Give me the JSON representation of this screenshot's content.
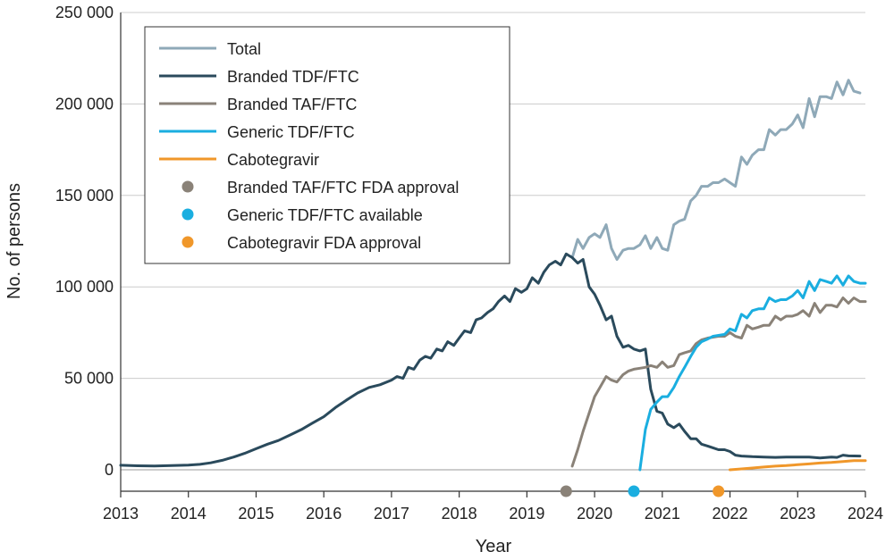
{
  "chart_data": {
    "type": "line",
    "title": "",
    "xlabel": "Year",
    "ylabel": "No. of persons",
    "xlim": [
      2013,
      2024
    ],
    "ylim": [
      0,
      250000
    ],
    "x_ticks": [
      2013,
      2014,
      2015,
      2016,
      2017,
      2018,
      2019,
      2020,
      2021,
      2022,
      2023,
      2024
    ],
    "x_tick_labels": [
      "2013",
      "2014",
      "2015",
      "2016",
      "2017",
      "2018",
      "2019",
      "2020",
      "2021",
      "2022",
      "2023",
      "2024"
    ],
    "y_ticks": [
      0,
      50000,
      100000,
      150000,
      200000,
      250000
    ],
    "y_tick_labels": [
      "0",
      "50 000",
      "100 000",
      "150 000",
      "200 000",
      "250 000"
    ],
    "grid": true,
    "legend_position": "top-left",
    "series": [
      {
        "name": "Total",
        "color": "#8fa9b8",
        "points": [
          [
            2019.67,
            116000
          ],
          [
            2019.75,
            126000
          ],
          [
            2019.83,
            121000
          ],
          [
            2019.92,
            127000
          ],
          [
            2020.0,
            129000
          ],
          [
            2020.08,
            127000
          ],
          [
            2020.17,
            134000
          ],
          [
            2020.25,
            121000
          ],
          [
            2020.33,
            115000
          ],
          [
            2020.42,
            120000
          ],
          [
            2020.5,
            121000
          ],
          [
            2020.58,
            121000
          ],
          [
            2020.67,
            123000
          ],
          [
            2020.75,
            128000
          ],
          [
            2020.83,
            121000
          ],
          [
            2020.92,
            127000
          ],
          [
            2021.0,
            121000
          ],
          [
            2021.08,
            120000
          ],
          [
            2021.17,
            134000
          ],
          [
            2021.25,
            136000
          ],
          [
            2021.33,
            137000
          ],
          [
            2021.42,
            147000
          ],
          [
            2021.5,
            150000
          ],
          [
            2021.58,
            155000
          ],
          [
            2021.67,
            155000
          ],
          [
            2021.75,
            157000
          ],
          [
            2021.83,
            157000
          ],
          [
            2021.92,
            159000
          ],
          [
            2022.0,
            157000
          ],
          [
            2022.08,
            155000
          ],
          [
            2022.17,
            171000
          ],
          [
            2022.25,
            167000
          ],
          [
            2022.33,
            172000
          ],
          [
            2022.42,
            175000
          ],
          [
            2022.5,
            175000
          ],
          [
            2022.58,
            186000
          ],
          [
            2022.67,
            183000
          ],
          [
            2022.75,
            186000
          ],
          [
            2022.83,
            186000
          ],
          [
            2022.92,
            189000
          ],
          [
            2023.0,
            194000
          ],
          [
            2023.08,
            187000
          ],
          [
            2023.17,
            203000
          ],
          [
            2023.25,
            193000
          ],
          [
            2023.33,
            204000
          ],
          [
            2023.42,
            204000
          ],
          [
            2023.5,
            203000
          ],
          [
            2023.58,
            212000
          ],
          [
            2023.67,
            205000
          ],
          [
            2023.75,
            213000
          ],
          [
            2023.83,
            207000
          ],
          [
            2023.92,
            206000
          ]
        ]
      },
      {
        "name": "Branded TDF/FTC",
        "color": "#2a4a5c",
        "points": [
          [
            2013.0,
            2500
          ],
          [
            2013.25,
            2200
          ],
          [
            2013.5,
            2100
          ],
          [
            2013.75,
            2300
          ],
          [
            2014.0,
            2600
          ],
          [
            2014.17,
            3000
          ],
          [
            2014.33,
            3800
          ],
          [
            2014.5,
            5200
          ],
          [
            2014.67,
            7000
          ],
          [
            2014.83,
            9000
          ],
          [
            2015.0,
            11500
          ],
          [
            2015.17,
            14000
          ],
          [
            2015.33,
            16000
          ],
          [
            2015.5,
            19000
          ],
          [
            2015.67,
            22000
          ],
          [
            2015.83,
            25500
          ],
          [
            2016.0,
            29000
          ],
          [
            2016.17,
            34000
          ],
          [
            2016.33,
            38000
          ],
          [
            2016.5,
            42000
          ],
          [
            2016.67,
            45000
          ],
          [
            2016.83,
            46500
          ],
          [
            2017.0,
            49000
          ],
          [
            2017.08,
            51000
          ],
          [
            2017.17,
            50000
          ],
          [
            2017.25,
            56000
          ],
          [
            2017.33,
            55000
          ],
          [
            2017.42,
            60000
          ],
          [
            2017.5,
            62000
          ],
          [
            2017.58,
            61000
          ],
          [
            2017.67,
            66000
          ],
          [
            2017.75,
            65000
          ],
          [
            2017.83,
            70000
          ],
          [
            2017.92,
            68000
          ],
          [
            2018.0,
            72000
          ],
          [
            2018.08,
            76000
          ],
          [
            2018.17,
            75000
          ],
          [
            2018.25,
            82000
          ],
          [
            2018.33,
            83000
          ],
          [
            2018.42,
            86000
          ],
          [
            2018.5,
            88000
          ],
          [
            2018.58,
            92000
          ],
          [
            2018.67,
            95000
          ],
          [
            2018.75,
            92000
          ],
          [
            2018.83,
            99000
          ],
          [
            2018.92,
            97000
          ],
          [
            2019.0,
            99000
          ],
          [
            2019.08,
            105000
          ],
          [
            2019.17,
            102000
          ],
          [
            2019.25,
            108000
          ],
          [
            2019.33,
            112000
          ],
          [
            2019.42,
            114000
          ],
          [
            2019.5,
            112000
          ],
          [
            2019.58,
            118000
          ],
          [
            2019.67,
            116000
          ],
          [
            2019.75,
            113000
          ],
          [
            2019.83,
            115000
          ],
          [
            2019.92,
            100000
          ],
          [
            2020.0,
            96000
          ],
          [
            2020.08,
            90000
          ],
          [
            2020.17,
            82000
          ],
          [
            2020.25,
            84000
          ],
          [
            2020.33,
            73000
          ],
          [
            2020.42,
            67000
          ],
          [
            2020.5,
            68000
          ],
          [
            2020.58,
            66000
          ],
          [
            2020.67,
            65000
          ],
          [
            2020.75,
            66000
          ],
          [
            2020.83,
            44000
          ],
          [
            2020.92,
            32000
          ],
          [
            2021.0,
            31000
          ],
          [
            2021.08,
            25000
          ],
          [
            2021.17,
            23000
          ],
          [
            2021.25,
            25000
          ],
          [
            2021.33,
            21000
          ],
          [
            2021.42,
            17000
          ],
          [
            2021.5,
            17000
          ],
          [
            2021.58,
            14000
          ],
          [
            2021.67,
            13000
          ],
          [
            2021.75,
            12000
          ],
          [
            2021.83,
            11000
          ],
          [
            2021.92,
            11000
          ],
          [
            2022.0,
            10000
          ],
          [
            2022.08,
            8000
          ],
          [
            2022.17,
            7500
          ],
          [
            2022.33,
            7200
          ],
          [
            2022.5,
            7000
          ],
          [
            2022.67,
            6800
          ],
          [
            2022.83,
            7000
          ],
          [
            2023.0,
            7000
          ],
          [
            2023.17,
            7000
          ],
          [
            2023.33,
            6500
          ],
          [
            2023.5,
            7000
          ],
          [
            2023.58,
            6800
          ],
          [
            2023.67,
            8000
          ],
          [
            2023.75,
            7600
          ],
          [
            2023.92,
            7500
          ]
        ]
      },
      {
        "name": "Branded TAF/FTC",
        "color": "#8a8278",
        "points": [
          [
            2019.67,
            2000
          ],
          [
            2019.75,
            11000
          ],
          [
            2019.83,
            21000
          ],
          [
            2019.92,
            31000
          ],
          [
            2020.0,
            40000
          ],
          [
            2020.08,
            45000
          ],
          [
            2020.17,
            51000
          ],
          [
            2020.25,
            49000
          ],
          [
            2020.33,
            48000
          ],
          [
            2020.42,
            52000
          ],
          [
            2020.5,
            54000
          ],
          [
            2020.58,
            55000
          ],
          [
            2020.67,
            55500
          ],
          [
            2020.75,
            56000
          ],
          [
            2020.83,
            57000
          ],
          [
            2020.92,
            56000
          ],
          [
            2021.0,
            59000
          ],
          [
            2021.08,
            56000
          ],
          [
            2021.17,
            57000
          ],
          [
            2021.25,
            63000
          ],
          [
            2021.33,
            64000
          ],
          [
            2021.42,
            65000
          ],
          [
            2021.5,
            69000
          ],
          [
            2021.58,
            71000
          ],
          [
            2021.67,
            72000
          ],
          [
            2021.75,
            72500
          ],
          [
            2021.83,
            73000
          ],
          [
            2021.92,
            73000
          ],
          [
            2022.0,
            75000
          ],
          [
            2022.08,
            73000
          ],
          [
            2022.17,
            72000
          ],
          [
            2022.25,
            79000
          ],
          [
            2022.33,
            77000
          ],
          [
            2022.42,
            78000
          ],
          [
            2022.5,
            79000
          ],
          [
            2022.58,
            79000
          ],
          [
            2022.67,
            84000
          ],
          [
            2022.75,
            82000
          ],
          [
            2022.83,
            84000
          ],
          [
            2022.92,
            84000
          ],
          [
            2023.0,
            85000
          ],
          [
            2023.08,
            87000
          ],
          [
            2023.17,
            84000
          ],
          [
            2023.25,
            91000
          ],
          [
            2023.33,
            86000
          ],
          [
            2023.42,
            90000
          ],
          [
            2023.5,
            90000
          ],
          [
            2023.58,
            89000
          ],
          [
            2023.67,
            94000
          ],
          [
            2023.75,
            91000
          ],
          [
            2023.83,
            94000
          ],
          [
            2023.92,
            92000
          ],
          [
            2024.0,
            92000
          ]
        ]
      },
      {
        "name": "Generic TDF/FTC",
        "color": "#1aaee0",
        "points": [
          [
            2020.67,
            0
          ],
          [
            2020.75,
            22000
          ],
          [
            2020.83,
            33000
          ],
          [
            2020.92,
            37000
          ],
          [
            2021.0,
            40000
          ],
          [
            2021.08,
            40000
          ],
          [
            2021.17,
            45000
          ],
          [
            2021.25,
            51000
          ],
          [
            2021.33,
            56000
          ],
          [
            2021.42,
            62000
          ],
          [
            2021.5,
            67000
          ],
          [
            2021.58,
            70000
          ],
          [
            2021.67,
            71500
          ],
          [
            2021.75,
            73000
          ],
          [
            2021.83,
            73500
          ],
          [
            2021.92,
            74000
          ],
          [
            2022.0,
            77000
          ],
          [
            2022.08,
            76000
          ],
          [
            2022.17,
            85000
          ],
          [
            2022.25,
            83000
          ],
          [
            2022.33,
            87000
          ],
          [
            2022.42,
            88000
          ],
          [
            2022.5,
            88000
          ],
          [
            2022.58,
            94000
          ],
          [
            2022.67,
            92000
          ],
          [
            2022.75,
            93000
          ],
          [
            2022.83,
            93000
          ],
          [
            2022.92,
            95000
          ],
          [
            2023.0,
            98000
          ],
          [
            2023.08,
            94000
          ],
          [
            2023.17,
            103000
          ],
          [
            2023.25,
            98000
          ],
          [
            2023.33,
            104000
          ],
          [
            2023.42,
            103000
          ],
          [
            2023.5,
            102000
          ],
          [
            2023.58,
            106000
          ],
          [
            2023.67,
            101000
          ],
          [
            2023.75,
            106000
          ],
          [
            2023.83,
            103000
          ],
          [
            2023.92,
            102000
          ],
          [
            2024.0,
            102000
          ]
        ]
      },
      {
        "name": "Cabotegravir",
        "color": "#f0972a",
        "points": [
          [
            2022.0,
            0
          ],
          [
            2022.17,
            500
          ],
          [
            2022.33,
            1000
          ],
          [
            2022.5,
            1500
          ],
          [
            2022.67,
            2000
          ],
          [
            2022.83,
            2300
          ],
          [
            2023.0,
            2800
          ],
          [
            2023.17,
            3200
          ],
          [
            2023.33,
            3700
          ],
          [
            2023.5,
            4000
          ],
          [
            2023.67,
            4500
          ],
          [
            2023.83,
            5000
          ],
          [
            2024.0,
            5000
          ]
        ]
      }
    ],
    "markers": [
      {
        "name": "Branded TAF/FTC FDA approval",
        "x": 2019.58,
        "color": "#8a8278"
      },
      {
        "name": "Generic TDF/FTC available",
        "x": 2020.58,
        "color": "#1aaee0"
      },
      {
        "name": "Cabotegravir FDA approval",
        "x": 2021.83,
        "color": "#f0972a"
      }
    ]
  }
}
